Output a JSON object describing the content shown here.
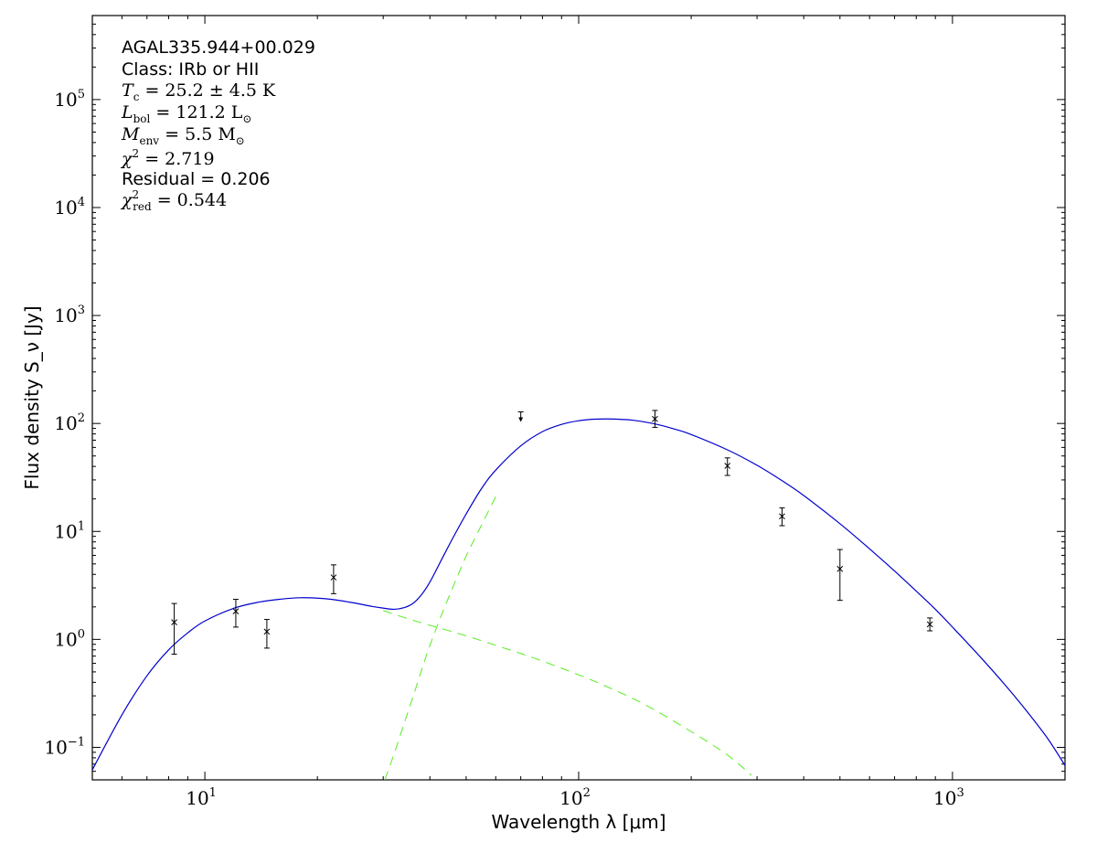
{
  "chart_data": {
    "type": "line",
    "xlabel": "Wavelength λ [μm]",
    "ylabel": "Flux density S_ν [Jy]",
    "xscale": "log",
    "yscale": "log",
    "xlim": [
      5,
      2000
    ],
    "ylim": [
      0.05,
      600000
    ],
    "grid": false,
    "x_ticks": [
      {
        "value": 10,
        "base": "10",
        "exp": "1"
      },
      {
        "value": 100,
        "base": "10",
        "exp": "2"
      },
      {
        "value": 1000,
        "base": "10",
        "exp": "3"
      }
    ],
    "y_ticks": [
      {
        "value": 0.1,
        "base": "10",
        "exp": "−1"
      },
      {
        "value": 1,
        "base": "10",
        "exp": "0"
      },
      {
        "value": 10,
        "base": "10",
        "exp": "1"
      },
      {
        "value": 100,
        "base": "10",
        "exp": "2"
      },
      {
        "value": 1000,
        "base": "10",
        "exp": "3"
      },
      {
        "value": 10000,
        "base": "10",
        "exp": "4"
      },
      {
        "value": 100000,
        "base": "10",
        "exp": "5"
      }
    ],
    "annotations": {
      "source": "AGAL335.944+00.029",
      "class_text": "Class: IRb or HII",
      "tc_label": "T",
      "tc_sub": "c",
      "tc_value": " = 25.2 ± 4.5 K",
      "lbol_label": "L",
      "lbol_sub": "bol",
      "lbol_value": " = 121.2 L",
      "menv_label": "M",
      "menv_sub": "env",
      "menv_value": " = 5.5 M",
      "sun_sub": "⊙",
      "chi2_label": "χ",
      "chi2_sup": "2",
      "chi2_value": " = 2.719",
      "residual": "Residual = 0.206",
      "chi2red_label": "χ",
      "chi2red_sup": "2",
      "chi2red_sub": "red",
      "chi2red_value": " = 0.544"
    },
    "points": [
      {
        "x": 8.28,
        "y": 1.44,
        "yerr_low": 0.73,
        "yerr_high": 2.15
      },
      {
        "x": 12.1,
        "y": 1.82,
        "yerr_low": 1.3,
        "yerr_high": 2.35
      },
      {
        "x": 14.65,
        "y": 1.18,
        "yerr_low": 0.83,
        "yerr_high": 1.53
      },
      {
        "x": 22.1,
        "y": 3.75,
        "yerr_low": 2.65,
        "yerr_high": 4.9
      },
      {
        "x": 160,
        "y": 110,
        "yerr_low": 92,
        "yerr_high": 132
      },
      {
        "x": 250,
        "y": 40.5,
        "yerr_low": 33,
        "yerr_high": 48
      },
      {
        "x": 350,
        "y": 13.8,
        "yerr_low": 11.3,
        "yerr_high": 16.5
      },
      {
        "x": 500,
        "y": 4.5,
        "yerr_low": 2.3,
        "yerr_high": 6.8
      },
      {
        "x": 870,
        "y": 1.38,
        "yerr_low": 1.2,
        "yerr_high": 1.58
      }
    ],
    "upper_limits": [
      {
        "x": 70,
        "y": 128
      }
    ],
    "series": [
      {
        "color": "#0000cc",
        "dash": "solid",
        "x": [
          5,
          6,
          7,
          8,
          9,
          10,
          12,
          14,
          16,
          18,
          20,
          22,
          25,
          28,
          30,
          32,
          34,
          36,
          38,
          40,
          43,
          46,
          50,
          55,
          60,
          70,
          80,
          90,
          100,
          110,
          120,
          130,
          140,
          160,
          180,
          200,
          250,
          300,
          350,
          400,
          500,
          600,
          700,
          800,
          900,
          1000,
          1200,
          1400,
          1600,
          1800,
          2000
        ],
        "y": [
          0.062,
          0.2,
          0.46,
          0.8,
          1.15,
          1.48,
          1.95,
          2.22,
          2.36,
          2.43,
          2.41,
          2.34,
          2.18,
          2.02,
          1.95,
          1.9,
          1.96,
          2.15,
          2.6,
          3.4,
          5.5,
          8.6,
          14.5,
          25,
          37,
          62,
          84,
          98,
          106,
          109.5,
          110,
          109,
          107,
          99,
          89,
          79,
          57,
          41,
          29.5,
          21.5,
          11.8,
          6.9,
          4.3,
          2.8,
          1.9,
          1.3,
          0.66,
          0.36,
          0.205,
          0.12,
          0.068
        ]
      },
      {
        "color": "#66ee33",
        "dash": "dashed",
        "x": [
          30,
          35,
          40,
          50,
          60,
          70,
          80,
          100,
          120,
          150,
          200,
          250,
          290
        ],
        "y": [
          1.85,
          1.55,
          1.35,
          1.08,
          0.88,
          0.74,
          0.63,
          0.47,
          0.36,
          0.25,
          0.14,
          0.085,
          0.055
        ]
      },
      {
        "color": "#66ee33",
        "dash": "dashed",
        "x": [
          30.3,
          32,
          34,
          36,
          38,
          40,
          43,
          46,
          50,
          55,
          60
        ],
        "y": [
          0.05,
          0.085,
          0.16,
          0.29,
          0.52,
          0.88,
          1.7,
          3.0,
          5.9,
          11.5,
          21
        ]
      }
    ]
  }
}
